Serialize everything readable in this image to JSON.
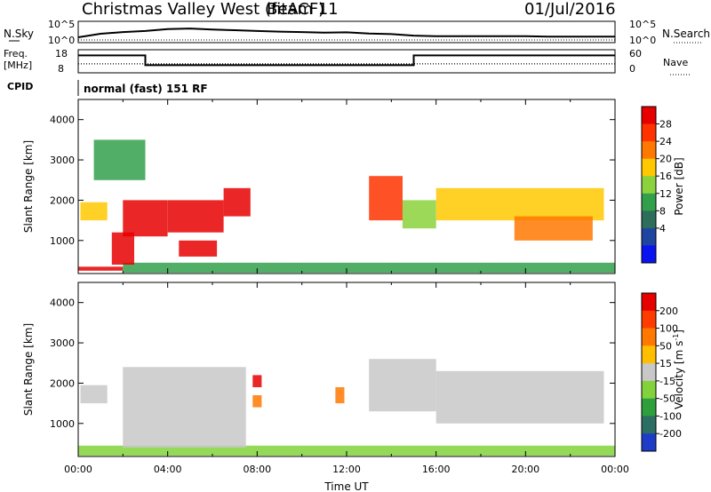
{
  "header": {
    "title": "Christmas Valley West (fitACF)",
    "beam": "Beam 11",
    "date": "01/Jul/2016"
  },
  "top_panels": {
    "nsky_label": "N.Sky",
    "nsky_ticks": [
      "10^5",
      "10^0"
    ],
    "nsearch_label": "N.Search",
    "nsearch_ticks": [
      "10^5",
      "10^0"
    ],
    "freq_label_1": "Freq.",
    "freq_label_2": "[MHz]",
    "freq_ticks": [
      "18",
      "8"
    ],
    "nave_label": "Nave",
    "nave_ticks": [
      "60",
      "0"
    ],
    "cpid_label": "CPID",
    "cpid_text": "normal (fast) 151 RF"
  },
  "chart_data": [
    {
      "type": "line",
      "panel": "N.Sky / N.Search",
      "x_unit": "hours UT",
      "x": [
        0,
        1,
        2,
        3,
        4,
        5,
        6,
        7,
        8,
        9,
        10,
        11,
        12,
        13,
        14,
        15,
        16,
        17,
        18,
        19,
        20,
        21,
        22,
        23,
        24
      ],
      "series": [
        {
          "name": "N.Sky",
          "values": [
            10,
            100,
            300,
            600,
            2000,
            3000,
            1500,
            1000,
            600,
            400,
            300,
            200,
            250,
            120,
            80,
            30,
            20,
            20,
            20,
            20,
            20,
            15,
            15,
            15,
            15
          ]
        },
        {
          "name": "N.Search",
          "values": [
            1,
            1,
            1,
            1,
            1,
            1,
            1,
            1,
            1,
            1,
            1,
            1,
            1,
            1,
            1,
            1,
            1,
            1,
            1,
            1,
            1,
            1,
            1,
            1,
            1
          ]
        }
      ]
    },
    {
      "type": "line",
      "panel": "Freq. / Nave",
      "x_unit": "hours UT",
      "freq_ylim": [
        8,
        18
      ],
      "nave_ylim": [
        0,
        60
      ],
      "series": [
        {
          "name": "Freq.",
          "x": [
            0,
            3,
            3,
            15,
            15,
            24
          ],
          "values": [
            16,
            16,
            11,
            11,
            16,
            16
          ]
        },
        {
          "name": "Nave",
          "x": [
            0,
            24
          ],
          "values": [
            22,
            22
          ]
        }
      ]
    },
    {
      "type": "heatmap",
      "panel": "Power",
      "xlabel": "",
      "ylabel": "Slant Range [km]",
      "xlim": [
        0,
        24
      ],
      "ylim": [
        180,
        4500
      ],
      "yticks": [
        "4000",
        "3000",
        "2000",
        "1000"
      ],
      "colorbar_label": "Power [dB]",
      "colorbar_ticks": [
        "28",
        "24",
        "20",
        "16",
        "12",
        "8",
        "4"
      ],
      "colorbar_colors": [
        "#0a14f0",
        "#1e46a0",
        "#2d6e5a",
        "#32a04b",
        "#8cd23c",
        "#ffc800",
        "#ff7800",
        "#ff3200",
        "#e60000"
      ],
      "regions": [
        {
          "t": [
            0.0,
            2.0
          ],
          "r": [
            250,
            350
          ],
          "level": 9
        },
        {
          "t": [
            2.0,
            24.0
          ],
          "r": [
            200,
            450
          ],
          "level": 3
        },
        {
          "t": [
            1.5,
            2.5
          ],
          "r": [
            400,
            1200
          ],
          "level": 9
        },
        {
          "t": [
            2.0,
            4.0
          ],
          "r": [
            1100,
            2000
          ],
          "level": 9
        },
        {
          "t": [
            4.0,
            6.5
          ],
          "r": [
            1200,
            2000
          ],
          "level": 9
        },
        {
          "t": [
            4.5,
            6.2
          ],
          "r": [
            600,
            1000
          ],
          "level": 8
        },
        {
          "t": [
            6.5,
            7.7
          ],
          "r": [
            1600,
            2300
          ],
          "level": 8
        },
        {
          "t": [
            0.1,
            1.3
          ],
          "r": [
            1500,
            1950
          ],
          "level": 5
        },
        {
          "t": [
            0.7,
            3.0
          ],
          "r": [
            2500,
            3500
          ],
          "level": 3
        },
        {
          "t": [
            13.0,
            14.5
          ],
          "r": [
            1500,
            2600
          ],
          "level": 7
        },
        {
          "t": [
            14.5,
            16.0
          ],
          "r": [
            1300,
            2000
          ],
          "level": 4
        },
        {
          "t": [
            16.0,
            23.5
          ],
          "r": [
            1500,
            2300
          ],
          "level": 5
        },
        {
          "t": [
            19.5,
            23.0
          ],
          "r": [
            1000,
            1600
          ],
          "level": 6
        }
      ]
    },
    {
      "type": "heatmap",
      "panel": "Velocity",
      "xlabel": "Time UT",
      "ylabel": "Slant Range [km]",
      "xlim": [
        0,
        24
      ],
      "ylim": [
        180,
        4500
      ],
      "xticks": [
        "00:00",
        "04:00",
        "08:00",
        "12:00",
        "16:00",
        "20:00",
        "00:00"
      ],
      "yticks": [
        "4000",
        "3000",
        "2000",
        "1000"
      ],
      "colorbar_label": "Velocity [m s",
      "colorbar_label_sup": "-1",
      "colorbar_label_end": "]",
      "colorbar_ticks": [
        "200",
        "100",
        "50",
        "15",
        "-15",
        "-50",
        "-100",
        "-200"
      ],
      "colorbar_colors": [
        "#1e3cc8",
        "#2d6e64",
        "#2da03c",
        "#82d23c",
        "#c8c8c8",
        "#ffbe00",
        "#ff7800",
        "#ff3c00",
        "#e60000"
      ],
      "regions": [
        {
          "t": [
            0.0,
            24.0
          ],
          "r": [
            200,
            450
          ],
          "level": 3
        },
        {
          "t": [
            2.0,
            7.5
          ],
          "r": [
            400,
            2400
          ],
          "level": 4
        },
        {
          "t": [
            0.1,
            1.3
          ],
          "r": [
            1500,
            1950
          ],
          "level": 4
        },
        {
          "t": [
            13.0,
            16.0
          ],
          "r": [
            1300,
            2600
          ],
          "level": 4
        },
        {
          "t": [
            16.0,
            23.5
          ],
          "r": [
            1000,
            2300
          ],
          "level": 4
        },
        {
          "t": [
            7.8,
            8.2
          ],
          "r": [
            1400,
            1700
          ],
          "level": 6
        },
        {
          "t": [
            7.8,
            8.2
          ],
          "r": [
            1900,
            2200
          ],
          "level": 8
        },
        {
          "t": [
            11.5,
            11.9
          ],
          "r": [
            1500,
            1900
          ],
          "level": 6
        }
      ]
    }
  ]
}
